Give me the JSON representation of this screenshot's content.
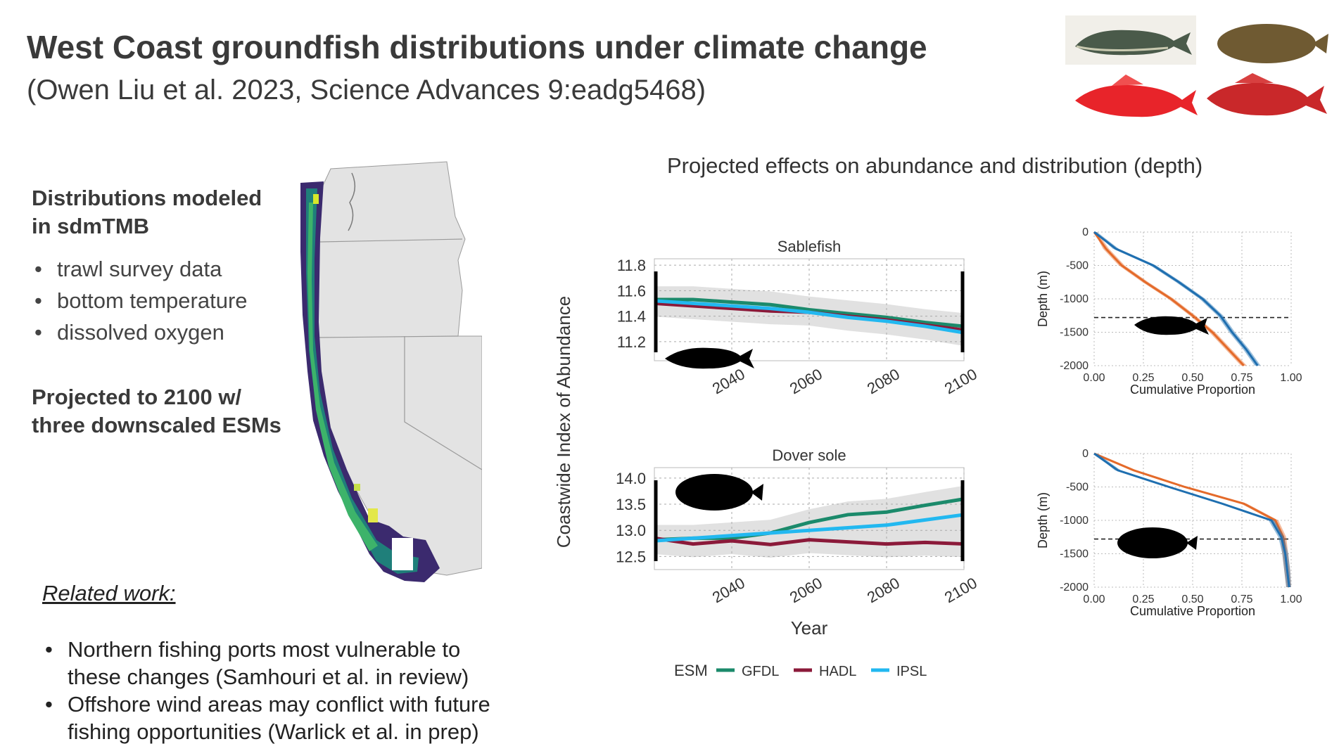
{
  "title": "West Coast groundfish distributions under climate change",
  "citation": "(Owen Liu et al. 2023, Science Advances 9:eadg5468)",
  "left_panel": {
    "dist_heading_line1": "Distributions modeled",
    "dist_heading_line2": "in sdmTMB",
    "bullets": [
      "trawl survey data",
      "bottom temperature",
      "dissolved oxygen"
    ],
    "proj_heading_line1": "Projected to 2100 w/",
    "proj_heading_line2": "three downscaled ESMs"
  },
  "related": {
    "heading": "Related work:",
    "items": [
      {
        "line1": "Northern fishing ports most vulnerable to",
        "line2": "these changes (Samhouri et al. in review)"
      },
      {
        "line1": "Offshore wind areas may conflict with future",
        "line2": "fishing opportunities (Warlick et al. in prep)"
      }
    ]
  },
  "charts_title": "Projected effects on abundance and distribution (depth)",
  "icons": {
    "fish_images": [
      "sablefish-illustration",
      "dover-sole-illustration",
      "red-rockfish-illustration",
      "red-rockfish-illustration-2"
    ],
    "map": "west-coast-map"
  },
  "colors": {
    "GFDL": "#1b8a6b",
    "HADL": "#8b1a3a",
    "IPSL": "#22b8f0",
    "orange": "#e46a2a",
    "blue": "#1f6fb0"
  },
  "legend": {
    "title": "ESM",
    "entries": [
      "GFDL",
      "HADL",
      "IPSL"
    ]
  },
  "chart_data": [
    {
      "type": "line",
      "title": "Sablefish",
      "ylabel": "Coastwide Index of Abundance",
      "xlabel": "",
      "xlim": [
        2020,
        2100
      ],
      "ylim": [
        11.05,
        11.85
      ],
      "yticks": [
        "11.8",
        "11.6",
        "11.4",
        "11.2"
      ],
      "xticks": [
        "2040",
        "2060",
        "2080",
        "2100"
      ],
      "x": [
        2020,
        2030,
        2040,
        2050,
        2060,
        2070,
        2080,
        2090,
        2100
      ],
      "series": [
        {
          "name": "GFDL",
          "values": [
            11.53,
            11.53,
            11.51,
            11.49,
            11.45,
            11.42,
            11.39,
            11.35,
            11.32
          ]
        },
        {
          "name": "HADL",
          "values": [
            11.5,
            11.48,
            11.46,
            11.44,
            11.43,
            11.4,
            11.37,
            11.33,
            11.29
          ]
        },
        {
          "name": "IPSL",
          "values": [
            11.52,
            11.5,
            11.48,
            11.46,
            11.43,
            11.39,
            11.36,
            11.32,
            11.27
          ]
        }
      ]
    },
    {
      "type": "line",
      "title": "Dover sole",
      "ylabel": "",
      "xlabel": "Year",
      "xlim": [
        2020,
        2100
      ],
      "ylim": [
        12.25,
        14.2
      ],
      "yticks": [
        "14.0",
        "13.5",
        "13.0",
        "12.5"
      ],
      "xticks": [
        "2040",
        "2060",
        "2080",
        "2100"
      ],
      "x": [
        2020,
        2030,
        2040,
        2050,
        2060,
        2070,
        2080,
        2090,
        2100
      ],
      "series": [
        {
          "name": "GFDL",
          "values": [
            12.82,
            12.85,
            12.85,
            12.95,
            13.15,
            13.3,
            13.35,
            13.48,
            13.6
          ]
        },
        {
          "name": "HADL",
          "values": [
            12.85,
            12.74,
            12.8,
            12.73,
            12.82,
            12.78,
            12.74,
            12.77,
            12.74
          ]
        },
        {
          "name": "IPSL",
          "values": [
            12.8,
            12.85,
            12.9,
            12.95,
            13.0,
            13.05,
            13.1,
            13.2,
            13.3
          ]
        }
      ]
    },
    {
      "type": "area",
      "title": "",
      "xlabel": "Cumulative Proportion",
      "ylabel": "Depth (m)",
      "xlim": [
        0,
        1
      ],
      "ylim": [
        -2000,
        0
      ],
      "xticks": [
        "0.00",
        "0.25",
        "0.50",
        "0.75",
        "1.00"
      ],
      "yticks": [
        "0",
        "-500",
        "-1000",
        "-1500",
        "-2000"
      ],
      "reference_depth": -1280,
      "depth": [
        0,
        -250,
        -500,
        -750,
        -1000,
        -1250,
        -1500,
        -1750,
        -2000
      ],
      "series": [
        {
          "color": "orange",
          "values": [
            0.0,
            0.06,
            0.14,
            0.26,
            0.39,
            0.5,
            0.6,
            0.68,
            0.76
          ]
        },
        {
          "color": "blue",
          "values": [
            0.0,
            0.11,
            0.3,
            0.43,
            0.55,
            0.64,
            0.7,
            0.77,
            0.83
          ]
        }
      ]
    },
    {
      "type": "area",
      "title": "",
      "xlabel": "Cumulative Proportion",
      "ylabel": "Depth (m)",
      "xlim": [
        0,
        1
      ],
      "ylim": [
        -2000,
        0
      ],
      "xticks": [
        "0.00",
        "0.25",
        "0.50",
        "0.75",
        "1.00"
      ],
      "yticks": [
        "0",
        "-500",
        "-1000",
        "-1500",
        "-2000"
      ],
      "reference_depth": -1280,
      "depth": [
        0,
        -250,
        -500,
        -750,
        -1000,
        -1250,
        -1500,
        -1750,
        -2000
      ],
      "series": [
        {
          "color": "orange",
          "values": [
            0.0,
            0.2,
            0.46,
            0.76,
            0.92,
            0.96,
            0.97,
            0.98,
            0.99
          ]
        },
        {
          "color": "blue",
          "values": [
            0.0,
            0.12,
            0.38,
            0.65,
            0.9,
            0.95,
            0.97,
            0.98,
            0.99
          ]
        }
      ]
    }
  ]
}
